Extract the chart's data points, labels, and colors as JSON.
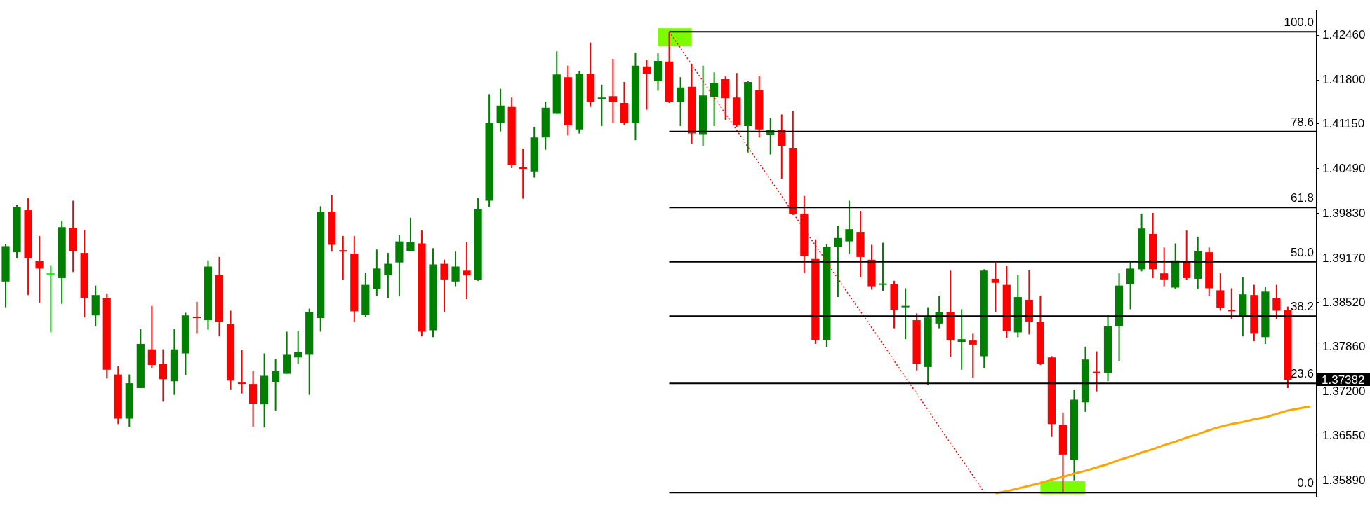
{
  "chart_data": {
    "type": "candlestick",
    "categories": [
      null,
      null,
      null,
      null,
      null,
      null,
      null,
      null,
      null,
      null,
      null,
      null,
      null,
      null,
      null,
      null,
      null,
      null,
      null,
      null,
      null,
      null,
      null,
      null,
      null,
      null,
      null,
      null,
      null,
      null,
      null,
      null,
      null,
      null,
      null,
      null,
      null,
      null,
      null,
      null,
      null,
      null,
      null,
      null,
      null,
      null,
      null,
      null,
      null,
      null,
      null,
      null,
      null,
      null,
      null,
      null,
      null,
      null,
      null,
      null,
      null,
      null,
      null,
      null,
      null,
      null,
      null,
      null,
      null,
      null,
      null,
      null,
      null,
      null,
      null,
      null,
      null,
      null,
      null,
      null,
      null,
      null,
      null,
      null,
      null,
      null,
      null,
      null,
      null,
      null,
      null,
      null,
      null,
      null,
      null,
      null,
      null,
      null,
      null,
      null,
      null,
      null,
      null,
      null,
      null,
      null,
      null,
      null,
      null,
      null,
      null,
      null,
      null,
      null,
      null,
      null,
      null
    ],
    "ohlc": [
      [
        1.3883,
        1.3938,
        1.3845,
        1.3935
      ],
      [
        1.3926,
        1.3996,
        1.3917,
        1.3993
      ],
      [
        1.3988,
        1.4006,
        1.3863,
        1.3917
      ],
      [
        1.3913,
        1.395,
        1.3852,
        1.3902
      ],
      [
        1.3893,
        1.3907,
        1.3808,
        1.3893
      ],
      [
        1.3888,
        1.3972,
        1.385,
        1.3963
      ],
      [
        1.3962,
        1.4002,
        1.3897,
        1.3928
      ],
      [
        1.3925,
        1.3959,
        1.383,
        1.3859
      ],
      [
        1.3833,
        1.3877,
        1.3817,
        1.3863
      ],
      [
        1.3859,
        1.3865,
        1.374,
        1.3753
      ],
      [
        1.3746,
        1.3758,
        1.3673,
        1.3681
      ],
      [
        1.3681,
        1.3746,
        1.3669,
        1.3733
      ],
      [
        1.3726,
        1.3813,
        1.3726,
        1.3791
      ],
      [
        1.3783,
        1.3847,
        1.3755,
        1.376
      ],
      [
        1.3761,
        1.3783,
        1.3706,
        1.3739
      ],
      [
        1.3736,
        1.3813,
        1.3716,
        1.3783
      ],
      [
        1.3777,
        1.3837,
        1.3745,
        1.3833
      ],
      [
        1.3831,
        1.3853,
        1.3806,
        1.3829
      ],
      [
        1.3826,
        1.3914,
        1.3812,
        1.3905
      ],
      [
        1.3893,
        1.3919,
        1.3802,
        1.3823
      ],
      [
        1.382,
        1.384,
        1.3724,
        1.3737
      ],
      [
        1.3734,
        1.3782,
        1.3718,
        1.3732
      ],
      [
        1.3732,
        1.3751,
        1.3669,
        1.3703
      ],
      [
        1.3702,
        1.3777,
        1.3668,
        1.3744
      ],
      [
        1.3735,
        1.3769,
        1.3693,
        1.3751
      ],
      [
        1.3747,
        1.3809,
        1.3747,
        1.3775
      ],
      [
        1.3771,
        1.381,
        1.3761,
        1.3779
      ],
      [
        1.3775,
        1.3843,
        1.3716,
        1.3838
      ],
      [
        1.3829,
        1.3994,
        1.3809,
        1.3986
      ],
      [
        1.3986,
        1.401,
        1.3927,
        1.3937
      ],
      [
        1.3929,
        1.395,
        1.3885,
        1.3927
      ],
      [
        1.3924,
        1.395,
        1.3823,
        1.3839
      ],
      [
        1.3834,
        1.3896,
        1.3831,
        1.3878
      ],
      [
        1.3872,
        1.393,
        1.3862,
        1.3902
      ],
      [
        1.3892,
        1.3925,
        1.3858,
        1.3909
      ],
      [
        1.3911,
        1.3951,
        1.3861,
        1.3942
      ],
      [
        1.3928,
        1.3977,
        1.3928,
        1.3941
      ],
      [
        1.3939,
        1.3958,
        1.3802,
        1.3809
      ],
      [
        1.3811,
        1.3932,
        1.3801,
        1.3908
      ],
      [
        1.3909,
        1.3915,
        1.3838,
        1.3886
      ],
      [
        1.3883,
        1.3927,
        1.3876,
        1.3905
      ],
      [
        1.3899,
        1.3941,
        1.3857,
        1.3892
      ],
      [
        1.3885,
        1.4006,
        1.3884,
        1.399
      ],
      [
        1.4002,
        1.4159,
        1.3993,
        1.4116
      ],
      [
        1.4116,
        1.4167,
        1.4104,
        1.4142
      ],
      [
        1.414,
        1.4154,
        1.405,
        1.4054
      ],
      [
        1.4051,
        1.4079,
        1.4005,
        1.4049
      ],
      [
        1.4045,
        1.4111,
        1.4036,
        1.4095
      ],
      [
        1.4095,
        1.4148,
        1.4077,
        1.4139
      ],
      [
        1.413,
        1.4222,
        1.413,
        1.4188
      ],
      [
        1.4184,
        1.4201,
        1.4098,
        1.4113
      ],
      [
        1.4107,
        1.4193,
        1.4101,
        1.4189
      ],
      [
        1.4189,
        1.4235,
        1.414,
        1.4147
      ],
      [
        1.4152,
        1.4173,
        1.4112,
        1.4154
      ],
      [
        1.4156,
        1.4211,
        1.4116,
        1.4147
      ],
      [
        1.4146,
        1.4177,
        1.4113,
        1.4116
      ],
      [
        1.4116,
        1.422,
        1.4091,
        1.4201
      ],
      [
        1.42,
        1.4209,
        1.4136,
        1.4189
      ],
      [
        1.4178,
        1.4219,
        1.4164,
        1.4208
      ],
      [
        1.4207,
        1.425,
        1.4146,
        1.4148
      ],
      [
        1.4147,
        1.4184,
        1.4112,
        1.4169
      ],
      [
        1.417,
        1.4203,
        1.4086,
        1.4101
      ],
      [
        1.41,
        1.4201,
        1.4083,
        1.4157
      ],
      [
        1.4155,
        1.4191,
        1.4112,
        1.4176
      ],
      [
        1.4181,
        1.4185,
        1.4121,
        1.4153
      ],
      [
        1.4154,
        1.419,
        1.411,
        1.4113
      ],
      [
        1.4112,
        1.4179,
        1.4073,
        1.4177
      ],
      [
        1.4165,
        1.4186,
        1.4095,
        1.4107
      ],
      [
        1.4099,
        1.4124,
        1.407,
        1.4106
      ],
      [
        1.4106,
        1.4129,
        1.4034,
        1.4083
      ],
      [
        1.408,
        1.4134,
        1.3981,
        1.3983
      ],
      [
        1.3983,
        1.4009,
        1.3895,
        1.392
      ],
      [
        1.3916,
        1.3945,
        1.3791,
        1.3797
      ],
      [
        1.3797,
        1.3938,
        1.3786,
        1.3934
      ],
      [
        1.3934,
        1.3965,
        1.386,
        1.3947
      ],
      [
        1.3942,
        1.4002,
        1.3923,
        1.396
      ],
      [
        1.3956,
        1.3987,
        1.3889,
        1.3919
      ],
      [
        1.3915,
        1.3937,
        1.3871,
        1.3876
      ],
      [
        1.3878,
        1.394,
        1.3869,
        1.388
      ],
      [
        1.3879,
        1.3884,
        1.3814,
        1.3841
      ],
      [
        1.3845,
        1.3873,
        1.3798,
        1.3846
      ],
      [
        1.3826,
        1.3836,
        1.3752,
        1.3761
      ],
      [
        1.3757,
        1.3845,
        1.3731,
        1.383
      ],
      [
        1.3821,
        1.3862,
        1.3814,
        1.3838
      ],
      [
        1.3838,
        1.3899,
        1.3772,
        1.3796
      ],
      [
        1.3794,
        1.3842,
        1.3753,
        1.3798
      ],
      [
        1.3796,
        1.3806,
        1.3741,
        1.379
      ],
      [
        1.3773,
        1.3901,
        1.3755,
        1.3899
      ],
      [
        1.3887,
        1.3911,
        1.3838,
        1.3881
      ],
      [
        1.3878,
        1.3906,
        1.38,
        1.381
      ],
      [
        1.3808,
        1.3893,
        1.3801,
        1.386
      ],
      [
        1.3856,
        1.39,
        1.3805,
        1.3824
      ],
      [
        1.3823,
        1.3862,
        1.376,
        1.3761
      ],
      [
        1.3771,
        1.3773,
        1.3654,
        1.3673
      ],
      [
        1.3672,
        1.369,
        1.3573,
        1.3628
      ],
      [
        1.362,
        1.3724,
        1.359,
        1.3709
      ],
      [
        1.3705,
        1.3787,
        1.3691,
        1.3768
      ],
      [
        1.375,
        1.378,
        1.3721,
        1.3748
      ],
      [
        1.3748,
        1.3834,
        1.3736,
        1.3817
      ],
      [
        1.3817,
        1.3895,
        1.3766,
        1.3877
      ],
      [
        1.3879,
        1.3911,
        1.3842,
        1.3902
      ],
      [
        1.3901,
        1.3983,
        1.3898,
        1.3961
      ],
      [
        1.3953,
        1.3984,
        1.3888,
        1.3901
      ],
      [
        1.3895,
        1.3933,
        1.3876,
        1.3886
      ],
      [
        1.3874,
        1.3939,
        1.3872,
        1.3914
      ],
      [
        1.3912,
        1.3958,
        1.3885,
        1.3888
      ],
      [
        1.3887,
        1.3949,
        1.3872,
        1.3928
      ],
      [
        1.3926,
        1.3933,
        1.3861,
        1.3873
      ],
      [
        1.387,
        1.3895,
        1.384,
        1.3844
      ],
      [
        1.3841,
        1.3873,
        1.3827,
        1.3839
      ],
      [
        1.3832,
        1.3889,
        1.3802,
        1.3864
      ],
      [
        1.3863,
        1.3878,
        1.3795,
        1.3806
      ],
      [
        1.3801,
        1.3875,
        1.3791,
        1.3868
      ],
      [
        1.3858,
        1.3878,
        1.3827,
        1.384
      ],
      [
        1.3841,
        1.3846,
        1.3726,
        1.37382
      ],
      null,
      null
    ],
    "colors": [
      "#008000",
      "#008000",
      "#ff0000",
      "#ff0000",
      "#00ff00",
      "#008000",
      "#ff0000",
      "#ff0000",
      "#008000",
      "#ff0000",
      "#ff0000",
      "#008000",
      "#008000",
      "#ff0000",
      "#ff0000",
      "#008000",
      "#008000",
      "#ff0000",
      "#008000",
      "#ff0000",
      "#ff0000",
      "#ff0000",
      "#ff0000",
      "#008000",
      "#008000",
      "#008000",
      "#008000",
      "#008000",
      "#008000",
      "#ff0000",
      "#ff0000",
      "#ff0000",
      "#008000",
      "#008000",
      "#008000",
      "#008000",
      "#008000",
      "#ff0000",
      "#008000",
      "#ff0000",
      "#008000",
      "#ff0000",
      "#008000",
      "#008000",
      "#008000",
      "#ff0000",
      "#ff0000",
      "#008000",
      "#008000",
      "#008000",
      "#ff0000",
      "#008000",
      "#ff0000",
      "#008000",
      "#ff0000",
      "#ff0000",
      "#008000",
      "#ff0000",
      "#008000",
      "#ff0000",
      "#008000",
      "#ff0000",
      "#008000",
      "#008000",
      "#ff0000",
      "#ff0000",
      "#008000",
      "#ff0000",
      "#008000",
      "#ff0000",
      "#ff0000",
      "#ff0000",
      "#ff0000",
      "#008000",
      "#008000",
      "#008000",
      "#ff0000",
      "#ff0000",
      "#008000",
      "#ff0000",
      "#008000",
      "#ff0000",
      "#008000",
      "#008000",
      "#ff0000",
      "#008000",
      "#ff0000",
      "#008000",
      "#ff0000",
      "#ff0000",
      "#008000",
      "#ff0000",
      "#ff0000",
      "#ff0000",
      "#ff0000",
      "#008000",
      "#008000",
      "#ff0000",
      "#008000",
      "#008000",
      "#008000",
      "#008000",
      "#ff0000",
      "#ff0000",
      "#008000",
      "#ff0000",
      "#008000",
      "#ff0000",
      "#ff0000",
      "#ff0000",
      "#008000",
      "#ff0000",
      "#008000",
      "#ff0000",
      "#ff0000",
      null,
      null
    ],
    "series": [
      {
        "type": "line",
        "color": "#ffa500",
        "values": [
          null,
          null,
          null,
          null,
          null,
          null,
          null,
          null,
          null,
          null,
          null,
          null,
          null,
          null,
          null,
          null,
          null,
          null,
          null,
          null,
          null,
          null,
          null,
          null,
          null,
          null,
          null,
          null,
          null,
          null,
          null,
          null,
          null,
          null,
          null,
          null,
          null,
          null,
          null,
          null,
          null,
          null,
          null,
          null,
          null,
          null,
          null,
          null,
          null,
          null,
          null,
          null,
          null,
          null,
          null,
          null,
          null,
          null,
          null,
          null,
          null,
          null,
          null,
          null,
          null,
          null,
          null,
          null,
          null,
          null,
          null,
          null,
          null,
          null,
          null,
          null,
          null,
          null,
          null,
          null,
          null,
          null,
          null,
          null,
          null,
          null,
          null,
          null,
          1.3571,
          1.3574,
          1.3578,
          1.3582,
          1.3586,
          1.3591,
          1.3595,
          1.36,
          1.3604,
          1.3609,
          1.3614,
          1.362,
          1.3625,
          1.3631,
          1.3636,
          1.3642,
          1.3647,
          1.3653,
          1.3658,
          1.3664,
          1.3669,
          1.3673,
          1.3676,
          1.368,
          1.3683,
          1.3688,
          1.3693,
          1.3696,
          1.3699
        ]
      },
      {
        "type": "line",
        "color": "#ff0000",
        "line_style": "dotted",
        "values": [
          null,
          null,
          null,
          null,
          null,
          null,
          null,
          null,
          null,
          null,
          null,
          null,
          null,
          null,
          null,
          null,
          null,
          null,
          null,
          null,
          null,
          null,
          null,
          null,
          null,
          null,
          null,
          null,
          null,
          null,
          null,
          null,
          null,
          null,
          null,
          null,
          null,
          null,
          null,
          null,
          null,
          null,
          null,
          null,
          null,
          null,
          null,
          null,
          null,
          null,
          null,
          null,
          null,
          null,
          null,
          null,
          null,
          null,
          null,
          1.4251,
          1.4227,
          1.4202,
          1.4178,
          1.4154,
          1.413,
          1.4106,
          1.4081,
          1.4057,
          1.4033,
          1.4009,
          1.3984,
          1.396,
          1.3936,
          1.3912,
          1.3887,
          1.3863,
          1.3839,
          1.3815,
          1.3791,
          1.3766,
          1.3742,
          1.3718,
          1.3694,
          1.3669,
          1.3645,
          1.3621,
          1.3597,
          1.3572,
          null,
          null,
          null,
          null,
          null,
          null,
          null,
          null,
          null,
          null,
          null,
          null,
          null,
          null,
          null,
          null,
          null,
          null,
          null,
          null,
          null,
          null,
          null,
          null,
          null,
          null,
          null,
          null,
          null
        ]
      }
    ],
    "ylim": [
      1.3567,
      1.4283
    ],
    "yticks": [
      {
        "value": 1.4246,
        "label": "1.42460"
      },
      {
        "value": 1.418,
        "label": "1.41800"
      },
      {
        "value": 1.4115,
        "label": "1.41150"
      },
      {
        "value": 1.4049,
        "label": "1.40490"
      },
      {
        "value": 1.3983,
        "label": "1.39830"
      },
      {
        "value": 1.3917,
        "label": "1.39170"
      },
      {
        "value": 1.3852,
        "label": "1.38520"
      },
      {
        "value": 1.3786,
        "label": "1.37860"
      },
      {
        "value": 1.372,
        "label": "1.37200"
      },
      {
        "value": 1.3655,
        "label": "1.36550"
      },
      {
        "value": 1.3589,
        "label": "1.35890"
      }
    ],
    "ref_lines": [
      {
        "axis": "y",
        "value": 1.4251,
        "color": "#000000"
      },
      {
        "axis": "y",
        "value": 1.4104,
        "color": "#000000"
      },
      {
        "axis": "y",
        "value": 1.3992,
        "color": "#000000"
      },
      {
        "axis": "y",
        "value": 1.3912,
        "color": "#000000"
      },
      {
        "axis": "y",
        "value": 1.3832,
        "color": "#000000"
      },
      {
        "axis": "y",
        "value": 1.3733,
        "color": "#000000"
      },
      {
        "axis": "y",
        "value": 1.3572,
        "color": "#000000"
      }
    ],
    "annotations": [
      {
        "text": "100.0",
        "y": 1.4251
      },
      {
        "text": "78.6",
        "y": 1.4104
      },
      {
        "text": "61.8",
        "y": 1.3992
      },
      {
        "text": "50.0",
        "y": 1.3912
      },
      {
        "text": "38.2",
        "y": 1.3832
      },
      {
        "text": "23.6",
        "y": 1.3733
      },
      {
        "text": "0.0",
        "y": 1.3572
      },
      "1.37382"
    ],
    "tick_labels": "y"
  }
}
